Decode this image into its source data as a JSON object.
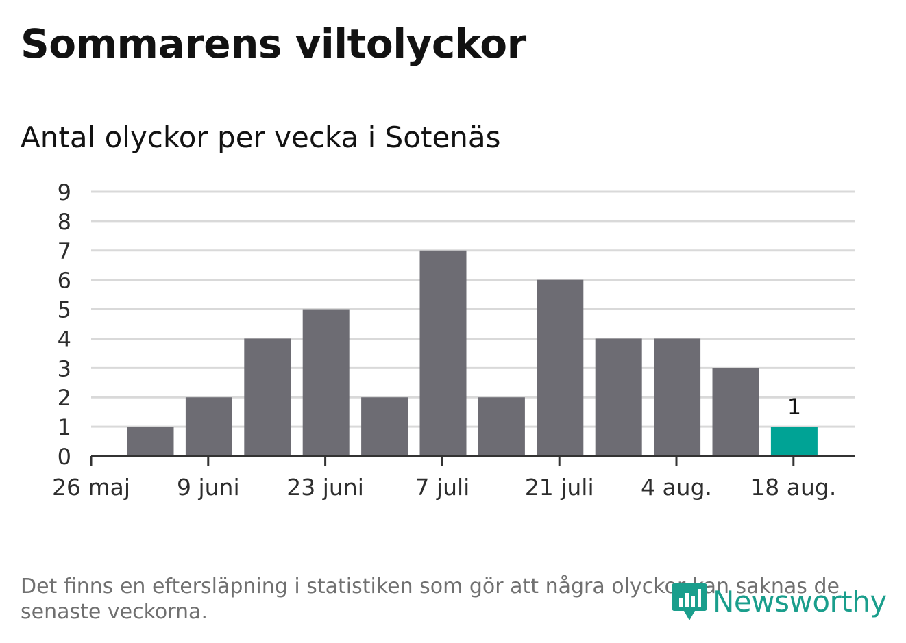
{
  "title": "Sommarens viltolyckor",
  "subtitle": "Antal olyckor per vecka i Sotenäs",
  "note": "Det finns en eftersläpning i statistiken som gör att några olyckor kan saknas de senaste veckorna.",
  "logo": {
    "text": "Newsworthy",
    "icon": "bar-chart-badge-icon"
  },
  "colors": {
    "bar": "#6d6c73",
    "highlight": "#00a395",
    "logo": "#1a9e8c"
  },
  "chart_data": {
    "type": "bar",
    "title": "Sommarens viltolyckor",
    "subtitle": "Antal olyckor per vecka i Sotenäs",
    "x_tick_labels": [
      "26 maj",
      "9 juni",
      "23 juni",
      "7 juli",
      "21 juli",
      "4 aug.",
      "18 aug."
    ],
    "weeks": [
      "2019-06-02",
      "2019-06-09",
      "2019-06-16",
      "2019-06-23",
      "2019-06-30",
      "2019-07-07",
      "2019-07-14",
      "2019-07-21",
      "2019-07-28",
      "2019-08-04",
      "2019-08-11",
      "2019-08-18"
    ],
    "values": [
      1,
      2,
      4,
      5,
      2,
      7,
      2,
      6,
      4,
      4,
      3,
      1
    ],
    "highlight_index": 11,
    "data_labels": [
      {
        "index": 11,
        "text": "1"
      }
    ],
    "ylim": [
      0,
      9
    ],
    "yticks": [
      0,
      1,
      2,
      3,
      4,
      5,
      6,
      7,
      8,
      9
    ],
    "grid": true,
    "legend": "none"
  }
}
